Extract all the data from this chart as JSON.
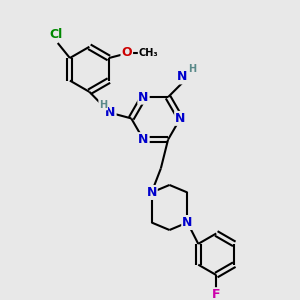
{
  "bg_color": "#e8e8e8",
  "bond_color": "#000000",
  "N_color": "#0000cc",
  "O_color": "#cc0000",
  "F_color": "#cc00aa",
  "Cl_color": "#008800",
  "H_color": "#5a8a8a",
  "line_width": 1.5,
  "fig_size": [
    3.0,
    3.0
  ],
  "dpi": 100,
  "xlim": [
    0,
    10
  ],
  "ylim": [
    0,
    10
  ]
}
